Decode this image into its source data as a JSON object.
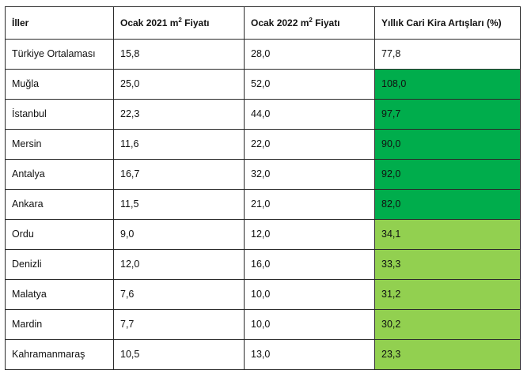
{
  "table": {
    "headers": {
      "city": "İller",
      "jan2021_prefix": "Ocak 2021 m",
      "jan2021_sup": "2",
      "jan2021_suffix": " Fiyatı",
      "jan2022_prefix": "Ocak 2022 m",
      "jan2022_sup": "2",
      "jan2022_suffix": " Fiyatı",
      "increase": "Yıllık Cari Kira Artışları (%)"
    },
    "colors": {
      "high_increase": "#00ad4c",
      "moderate_increase": "#92d050"
    },
    "rows": [
      {
        "city": "Türkiye Ortalaması",
        "price_2021": "15,8",
        "price_2022": "28,0",
        "increase": "77,8",
        "highlight": "none"
      },
      {
        "city": "Muğla",
        "price_2021": "25,0",
        "price_2022": "52,0",
        "increase": "108,0",
        "highlight": "dark"
      },
      {
        "city": "İstanbul",
        "price_2021": "22,3",
        "price_2022": "44,0",
        "increase": "97,7",
        "highlight": "dark"
      },
      {
        "city": "Mersin",
        "price_2021": "11,6",
        "price_2022": "22,0",
        "increase": "90,0",
        "highlight": "dark"
      },
      {
        "city": "Antalya",
        "price_2021": "16,7",
        "price_2022": "32,0",
        "increase": "92,0",
        "highlight": "dark"
      },
      {
        "city": "Ankara",
        "price_2021": "11,5",
        "price_2022": "21,0",
        "increase": "82,0",
        "highlight": "dark"
      },
      {
        "city": "Ordu",
        "price_2021": "9,0",
        "price_2022": "12,0",
        "increase": "34,1",
        "highlight": "light"
      },
      {
        "city": "Denizli",
        "price_2021": "12,0",
        "price_2022": "16,0",
        "increase": "33,3",
        "highlight": "light"
      },
      {
        "city": "Malatya",
        "price_2021": "7,6",
        "price_2022": "10,0",
        "increase": "31,2",
        "highlight": "light"
      },
      {
        "city": "Mardin",
        "price_2021": "7,7",
        "price_2022": "10,0",
        "increase": "30,2",
        "highlight": "light"
      },
      {
        "city": "Kahramanmaraş",
        "price_2021": "10,5",
        "price_2022": "13,0",
        "increase": "23,3",
        "highlight": "light"
      }
    ]
  }
}
